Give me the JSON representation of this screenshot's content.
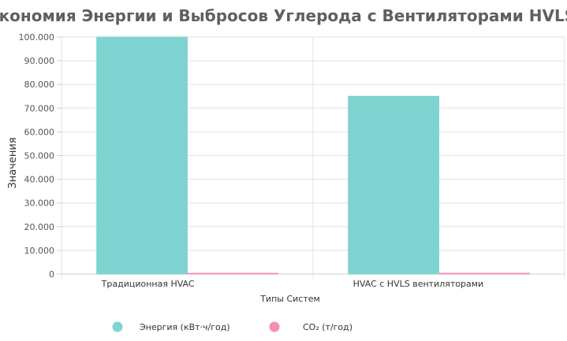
{
  "chart_data": {
    "type": "bar",
    "title": "Экономия Энергии и Выбросов Углерода с Вентиляторами HVLS",
    "xlabel": "Типы Систем",
    "ylabel": "Значения",
    "categories": [
      "Традиционная HVAC",
      "HVAC с HVLS вентиляторами"
    ],
    "series": [
      {
        "name": "Энергия (кВт·ч/год)",
        "values": [
          100000,
          75000
        ],
        "color": "#7fd3d0"
      },
      {
        "name": "CO₂ (т/год)",
        "values": [
          50,
          37.5
        ],
        "color": "#f48fb1"
      }
    ],
    "ylim": [
      0,
      100000
    ],
    "yticks": [
      0,
      10000,
      20000,
      30000,
      40000,
      50000,
      60000,
      70000,
      80000,
      90000,
      100000
    ],
    "ytick_labels": [
      "0",
      "10.000",
      "20.000",
      "30.000",
      "40.000",
      "50.000",
      "60.000",
      "70.000",
      "80.000",
      "90.000",
      "100.000"
    ],
    "grid": true,
    "legend_position": "bottom"
  }
}
